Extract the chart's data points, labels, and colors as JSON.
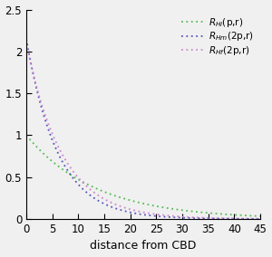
{
  "xlabel": "distance from CBD",
  "xlim": [
    0,
    45
  ],
  "ylim": [
    0,
    2.5
  ],
  "xticks": [
    0,
    5,
    10,
    15,
    20,
    25,
    30,
    35,
    40,
    45
  ],
  "yticks": [
    0,
    0.5,
    1.0,
    1.5,
    2.0,
    2.5
  ],
  "lines": [
    {
      "label": "R_{Hi}(p,r)",
      "color": "#55bb55",
      "y0": 1.0,
      "decay": 0.075
    },
    {
      "label": "R_{Hm}(2p,r)",
      "color": "#5555bb",
      "y0": 2.15,
      "decay": 0.165
    },
    {
      "label": "R_{Hf}(2p,r)",
      "color": "#cc88cc",
      "y0": 2.1,
      "decay": 0.145
    }
  ],
  "background_color": "#f0f0f0",
  "legend_fontsize": 7.5,
  "tick_fontsize": 8.5,
  "xlabel_fontsize": 9
}
